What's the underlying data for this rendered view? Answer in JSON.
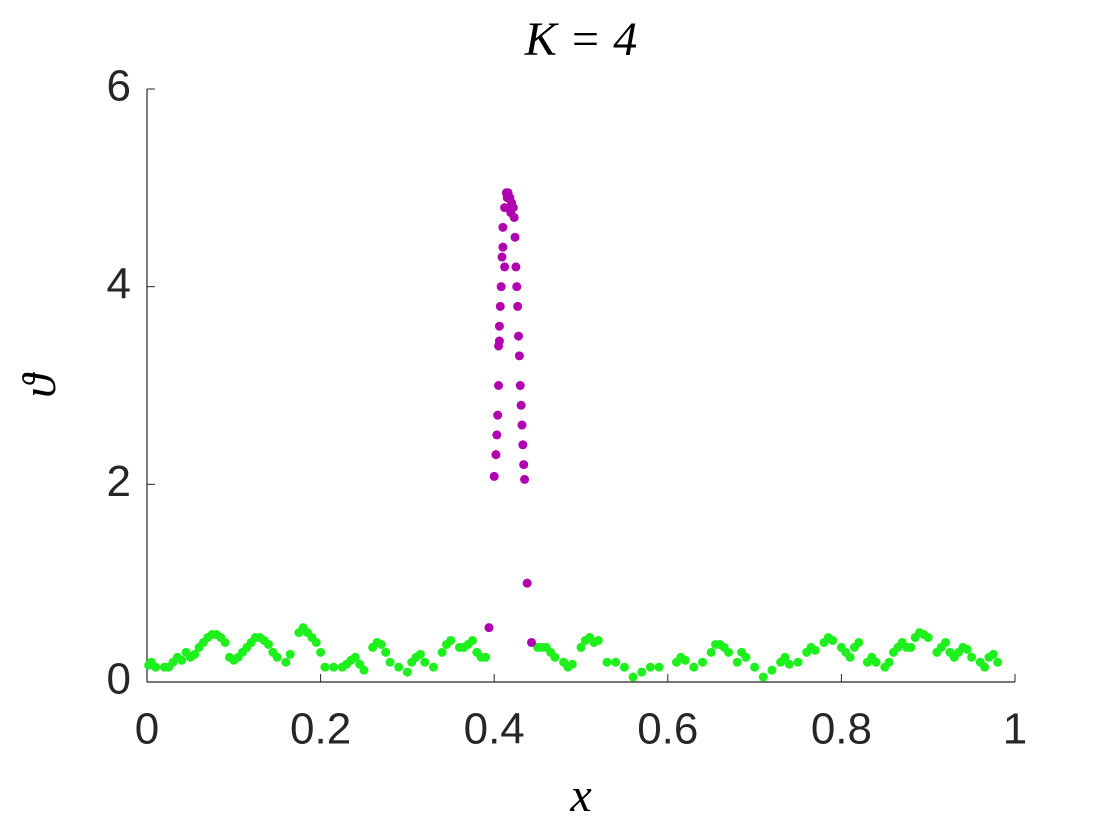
{
  "chart_data": {
    "type": "scatter",
    "title": "K = 4",
    "xlabel": "x",
    "ylabel": "ϑ",
    "xlim": [
      0,
      1
    ],
    "xticks": [
      0,
      0.2,
      0.4,
      0.6,
      0.8,
      1
    ],
    "ylim": [
      0,
      6
    ],
    "yticks": [
      0,
      2,
      4,
      6
    ],
    "grid": false,
    "series": [
      {
        "color": "#1ef01e",
        "x": [
          0.002,
          0.005,
          0.01,
          0.02,
          0.025,
          0.03,
          0.035,
          0.04,
          0.045,
          0.05,
          0.055,
          0.06,
          0.065,
          0.07,
          0.075,
          0.08,
          0.085,
          0.09,
          0.095,
          0.1,
          0.105,
          0.11,
          0.115,
          0.12,
          0.125,
          0.13,
          0.135,
          0.14,
          0.145,
          0.15,
          0.16,
          0.165,
          0.175,
          0.18,
          0.185,
          0.19,
          0.195,
          0.2,
          0.205,
          0.215,
          0.225,
          0.23,
          0.235,
          0.24,
          0.245,
          0.25,
          0.26,
          0.265,
          0.27,
          0.275,
          0.28,
          0.29,
          0.3,
          0.305,
          0.31,
          0.315,
          0.32,
          0.33,
          0.34,
          0.345,
          0.35,
          0.36,
          0.365,
          0.37,
          0.375,
          0.38,
          0.385,
          0.39,
          0.45,
          0.455,
          0.46,
          0.465,
          0.47,
          0.48,
          0.485,
          0.49,
          0.5,
          0.505,
          0.51,
          0.515,
          0.52,
          0.53,
          0.54,
          0.55,
          0.56,
          0.57,
          0.58,
          0.59,
          0.61,
          0.615,
          0.62,
          0.63,
          0.64,
          0.65,
          0.655,
          0.66,
          0.665,
          0.67,
          0.68,
          0.685,
          0.69,
          0.7,
          0.71,
          0.72,
          0.73,
          0.735,
          0.74,
          0.75,
          0.76,
          0.765,
          0.77,
          0.78,
          0.785,
          0.79,
          0.8,
          0.805,
          0.81,
          0.815,
          0.82,
          0.83,
          0.835,
          0.84,
          0.85,
          0.855,
          0.86,
          0.865,
          0.87,
          0.875,
          0.88,
          0.885,
          0.89,
          0.895,
          0.9,
          0.91,
          0.915,
          0.92,
          0.925,
          0.93,
          0.935,
          0.94,
          0.945,
          0.95,
          0.96,
          0.965,
          0.97,
          0.975,
          0.98
        ],
        "values": [
          0.17,
          0.2,
          0.15,
          0.15,
          0.15,
          0.2,
          0.25,
          0.22,
          0.3,
          0.25,
          0.28,
          0.35,
          0.4,
          0.45,
          0.48,
          0.48,
          0.45,
          0.4,
          0.25,
          0.22,
          0.25,
          0.3,
          0.35,
          0.4,
          0.45,
          0.45,
          0.42,
          0.38,
          0.3,
          0.25,
          0.2,
          0.28,
          0.5,
          0.55,
          0.5,
          0.45,
          0.4,
          0.3,
          0.15,
          0.15,
          0.15,
          0.18,
          0.22,
          0.25,
          0.18,
          0.12,
          0.35,
          0.4,
          0.38,
          0.3,
          0.2,
          0.15,
          0.1,
          0.2,
          0.25,
          0.28,
          0.2,
          0.15,
          0.3,
          0.38,
          0.42,
          0.35,
          0.35,
          0.38,
          0.42,
          0.3,
          0.25,
          0.25,
          0.35,
          0.35,
          0.35,
          0.3,
          0.25,
          0.2,
          0.15,
          0.18,
          0.35,
          0.42,
          0.45,
          0.4,
          0.42,
          0.2,
          0.2,
          0.15,
          0.05,
          0.1,
          0.15,
          0.15,
          0.2,
          0.25,
          0.22,
          0.15,
          0.2,
          0.3,
          0.38,
          0.38,
          0.35,
          0.3,
          0.2,
          0.3,
          0.25,
          0.15,
          0.05,
          0.12,
          0.2,
          0.25,
          0.18,
          0.2,
          0.3,
          0.35,
          0.32,
          0.4,
          0.45,
          0.42,
          0.35,
          0.3,
          0.25,
          0.35,
          0.4,
          0.2,
          0.25,
          0.2,
          0.15,
          0.2,
          0.3,
          0.35,
          0.4,
          0.35,
          0.35,
          0.45,
          0.5,
          0.48,
          0.45,
          0.3,
          0.35,
          0.4,
          0.3,
          0.25,
          0.3,
          0.35,
          0.33,
          0.25,
          0.2,
          0.15,
          0.25,
          0.28,
          0.2
        ]
      },
      {
        "color": "#b000b0",
        "x": [
          0.394,
          0.4,
          0.402,
          0.403,
          0.404,
          0.405,
          0.405,
          0.406,
          0.407,
          0.408,
          0.409,
          0.41,
          0.412,
          0.414,
          0.416,
          0.418,
          0.42,
          0.422,
          0.423,
          0.424,
          0.425,
          0.426,
          0.427,
          0.428,
          0.429,
          0.43,
          0.431,
          0.432,
          0.433,
          0.434,
          0.435,
          0.438,
          0.443,
          0.41,
          0.412,
          0.415,
          0.419,
          0.406
        ],
        "values": [
          0.55,
          2.08,
          2.3,
          2.5,
          2.7,
          3.0,
          3.4,
          3.6,
          3.8,
          4.0,
          4.3,
          4.6,
          4.8,
          4.95,
          4.95,
          4.9,
          4.85,
          4.8,
          4.7,
          4.5,
          4.2,
          4.0,
          3.8,
          3.5,
          3.3,
          3.0,
          2.8,
          2.6,
          2.4,
          2.2,
          2.05,
          1.0,
          0.4,
          4.4,
          4.2,
          4.9,
          4.75,
          3.45
        ]
      }
    ]
  }
}
